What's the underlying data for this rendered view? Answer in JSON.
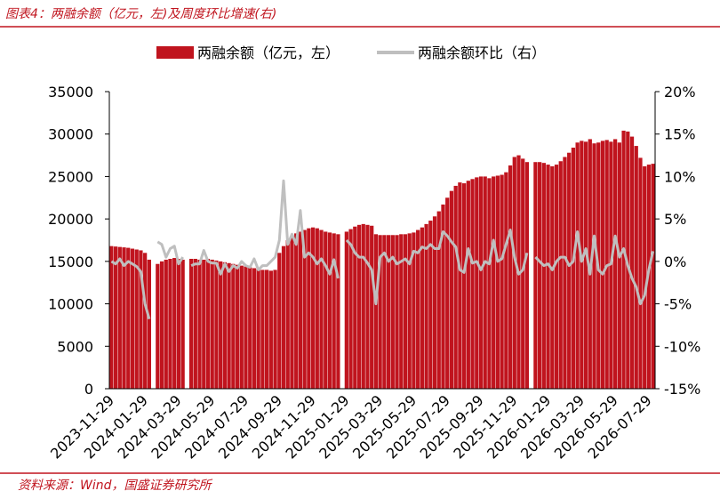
{
  "chart_data": {
    "type": "bar_line",
    "title": "图表4：两融余额（亿元，左)及周度环比增速(右)",
    "source": "资料来源：Wind，国盛证券研究所",
    "categories": [
      "2023-11-29",
      null,
      null,
      null,
      null,
      null,
      null,
      null,
      "2024-01-29",
      null,
      null,
      null,
      null,
      null,
      null,
      null,
      "2024-03-29",
      null,
      null,
      null,
      null,
      null,
      null,
      null,
      "2024-05-29",
      null,
      null,
      null,
      null,
      null,
      null,
      null,
      "2024-07-29",
      null,
      null,
      null,
      null,
      null,
      null,
      null,
      "2024-09-29",
      null,
      null,
      null,
      null,
      null,
      null,
      null,
      "2024-11-29",
      null,
      null,
      null,
      null,
      null,
      null,
      null,
      "2025-01-29",
      null,
      null,
      null,
      null,
      null,
      null,
      null,
      "2025-03-29",
      null,
      null,
      null,
      null,
      null,
      null,
      null,
      "2025-05-29",
      null,
      null,
      null,
      null,
      null,
      null,
      null,
      "2025-07-29",
      null,
      null,
      null,
      null,
      null,
      null,
      null,
      "2025-09-29",
      null,
      null,
      null,
      null,
      null,
      null,
      null,
      "2025-11-29",
      null,
      null,
      null,
      null,
      null,
      null,
      null,
      "2026-01-29",
      null,
      null,
      null,
      null,
      null,
      null,
      null,
      "2026-03-29",
      null,
      null,
      null,
      null,
      null,
      null,
      null,
      "2026-05-29",
      null,
      null,
      null,
      null,
      null,
      null,
      null,
      "2026-07-29",
      null
    ],
    "series": [
      {
        "name": "两融余额（亿元，左）",
        "kind": "bar",
        "color": "#c0141e",
        "values": [
          16800,
          16750,
          16700,
          16650,
          16600,
          16500,
          16400,
          16300,
          16000,
          15200,
          null,
          14700,
          15000,
          15200,
          15300,
          15400,
          15300,
          15200,
          null,
          15300,
          15300,
          15200,
          15200,
          15300,
          15200,
          15100,
          15000,
          14900,
          14800,
          14700,
          14600,
          14500,
          14400,
          14300,
          14200,
          14100,
          14000,
          14000,
          13900,
          14000,
          16000,
          16800,
          17500,
          18000,
          18300,
          18500,
          18700,
          18900,
          19000,
          18900,
          18700,
          18500,
          18400,
          18300,
          18200,
          null,
          18500,
          18800,
          19100,
          19300,
          19400,
          19300,
          19200,
          18200,
          18100,
          18100,
          18100,
          18100,
          18100,
          18200,
          18200,
          18300,
          18400,
          18700,
          19000,
          19400,
          19800,
          20300,
          20900,
          21700,
          22500,
          23300,
          23900,
          24300,
          24200,
          24500,
          24700,
          24900,
          25000,
          25000,
          24800,
          25000,
          25100,
          25200,
          25500,
          26300,
          27300,
          27500,
          27100,
          26700,
          null,
          26700,
          26700,
          26600,
          26400,
          26200,
          26400,
          26800,
          27300,
          27800,
          28400,
          29000,
          29200,
          29100,
          29400,
          28900,
          29000,
          29200,
          29300,
          29100,
          29400,
          29000,
          30400,
          30300,
          29700,
          28600,
          27200,
          26200,
          26400,
          26500
        ]
      },
      {
        "name": "两融余额环比（右）",
        "kind": "line",
        "axis": "y2",
        "color": "#bfbfbf",
        "values": [
          0,
          -0.3,
          0.3,
          -0.5,
          0,
          -0.3,
          -0.6,
          -1.2,
          -5,
          -6.8,
          null,
          2.3,
          2,
          0.5,
          1.5,
          1.8,
          -0.3,
          0.5,
          null,
          -0.5,
          -0.3,
          -0.3,
          1.3,
          0,
          -0.2,
          -0.2,
          -1.5,
          -0.3,
          -1.2,
          -0.5,
          -0.8,
          0,
          -0.5,
          -0.7,
          0.3,
          -1,
          -0.5,
          -0.5,
          0,
          0.5,
          2.5,
          9.5,
          2,
          3.2,
          2,
          6,
          0.5,
          1,
          0.5,
          -0.3,
          0.3,
          -0.5,
          -1.5,
          0.2,
          -2,
          null,
          2.5,
          2,
          1,
          0.5,
          0.5,
          -0.2,
          -1,
          -5,
          0.5,
          1,
          0,
          0.5,
          -0.3,
          0,
          0.3,
          -0.3,
          1.2,
          1,
          1.7,
          1.5,
          2,
          1.5,
          1.5,
          3.5,
          3,
          2.3,
          1.7,
          -1,
          -1.3,
          1.5,
          -0.2,
          0,
          -1,
          0,
          -0.3,
          2.5,
          0,
          0.3,
          2,
          3.7,
          0.5,
          -1.5,
          -1,
          1,
          null,
          0.5,
          0,
          -0.5,
          -0.3,
          -1,
          0,
          0.5,
          0.5,
          -0.5,
          0,
          3.5,
          0,
          1.5,
          -1.5,
          3,
          -1,
          -1.5,
          -0.5,
          -0.3,
          3,
          0.5,
          1.5,
          -0.5,
          -2,
          -3,
          -5,
          -4,
          -1,
          1.2
        ]
      }
    ],
    "ylim": [
      0,
      35000
    ],
    "yticks": [
      0,
      5000,
      10000,
      15000,
      20000,
      25000,
      30000,
      35000
    ],
    "y2lim": [
      -15,
      20
    ],
    "y2ticks": [
      {
        "value": -15,
        "label": "-15%"
      },
      {
        "value": -10,
        "label": "-10%"
      },
      {
        "value": -5,
        "label": "-5%"
      },
      {
        "value": 0,
        "label": "0%"
      },
      {
        "value": 5,
        "label": "5%"
      },
      {
        "value": 10,
        "label": "10%"
      },
      {
        "value": 15,
        "label": "15%"
      },
      {
        "value": 20,
        "label": "20%"
      }
    ]
  }
}
